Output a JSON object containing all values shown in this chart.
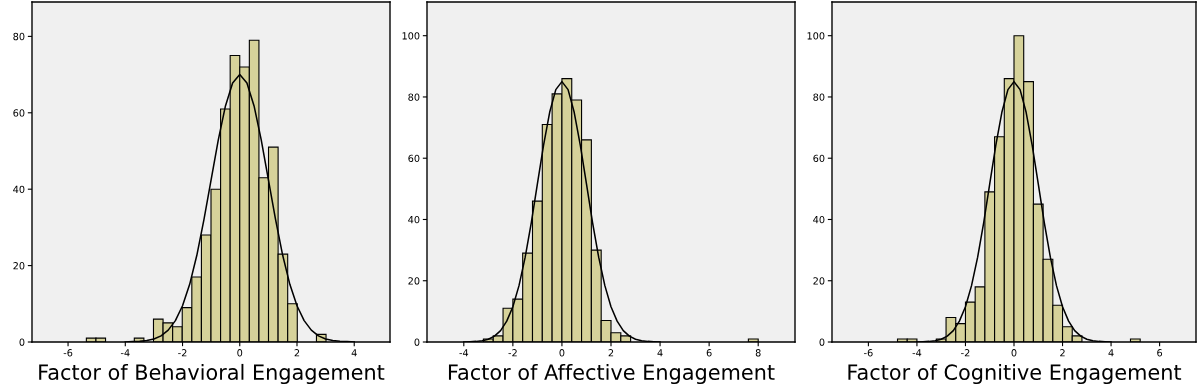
{
  "chart_data": [
    {
      "type": "histogram",
      "xlabel": "Factor of Behavioral Engagement",
      "xlim": [
        -7.26,
        5.25
      ],
      "ylim": [
        0,
        89
      ],
      "xticks": [
        -6,
        -4,
        -2,
        0,
        2,
        4
      ],
      "yticks": [
        0,
        20,
        40,
        60,
        80
      ],
      "grid": false,
      "series": [
        {
          "type": "histogram",
          "color": "#d6d29a",
          "bins": [
            -5.36,
            -5.025,
            -4.69,
            -4.355,
            -4.02,
            -3.685,
            -3.35,
            -3.015,
            -2.68,
            -2.345,
            -2.01,
            -1.675,
            -1.34,
            -1.005,
            -0.67,
            -0.335,
            0,
            0.335,
            0.67,
            1.005,
            1.34,
            1.675,
            2.01,
            2.345,
            2.68,
            3.015
          ],
          "values": [
            1,
            1,
            0,
            0,
            0,
            1,
            0,
            6,
            5,
            4,
            9,
            17,
            28,
            40,
            61,
            75,
            72,
            79,
            43,
            51,
            23,
            10,
            0,
            0,
            2
          ]
        },
        {
          "type": "line",
          "color": "#000000",
          "x": [
            -4,
            -3.75,
            -3.5,
            -3.25,
            -3,
            -2.75,
            -2.5,
            -2.25,
            -2,
            -1.75,
            -1.5,
            -1.25,
            -1,
            -0.75,
            -0.5,
            -0.25,
            0,
            0.25,
            0.5,
            0.75,
            1,
            1.25,
            1.5,
            1.75,
            2,
            2.25,
            2.5,
            2.75,
            3,
            3.25,
            3.5,
            3.75,
            4
          ],
          "values": [
            0,
            0.1,
            0.2,
            0.4,
            0.8,
            1.6,
            3.1,
            5.6,
            9.5,
            15.1,
            22.7,
            32.1,
            42.5,
            52.9,
            61.8,
            67.8,
            70,
            67.8,
            61.8,
            52.9,
            42.5,
            32.1,
            22.7,
            15.1,
            9.5,
            5.6,
            3.1,
            1.6,
            0.8,
            0.4,
            0.2,
            0.1,
            0
          ]
        }
      ]
    },
    {
      "type": "histogram",
      "xlabel": "Factor of Affective Engagement",
      "xlim": [
        -5.5,
        9.5
      ],
      "ylim": [
        0,
        111
      ],
      "xticks": [
        -4,
        -2,
        0,
        2,
        4,
        6,
        8
      ],
      "yticks": [
        0,
        20,
        40,
        60,
        80,
        100
      ],
      "grid": false,
      "series": [
        {
          "type": "histogram",
          "color": "#d6d29a",
          "bins": [
            -3.2,
            -2.8,
            -2.4,
            -2.0,
            -1.6,
            -1.2,
            -0.8,
            -0.4,
            0,
            0.4,
            0.8,
            1.2,
            1.6,
            2.0,
            2.4,
            2.8,
            3.2,
            3.6,
            4.0,
            4.4,
            4.8,
            5.2,
            5.6,
            6.0,
            6.4,
            6.8,
            7.2,
            7.6,
            8.0
          ],
          "values": [
            1,
            2,
            11,
            14,
            29,
            46,
            71,
            81,
            86,
            79,
            66,
            30,
            7,
            3,
            2,
            0,
            0,
            0,
            0,
            0,
            0,
            0,
            0,
            0,
            0,
            0,
            0,
            1
          ]
        },
        {
          "type": "line",
          "color": "#000000",
          "x": [
            -4,
            -3.75,
            -3.5,
            -3.25,
            -3,
            -2.75,
            -2.5,
            -2.25,
            -2,
            -1.75,
            -1.5,
            -1.25,
            -1,
            -0.75,
            -0.5,
            -0.25,
            0,
            0.25,
            0.5,
            0.75,
            1,
            1.25,
            1.5,
            1.75,
            2,
            2.25,
            2.5,
            2.75,
            3,
            3.25,
            3.5,
            3.75,
            4
          ],
          "values": [
            0,
            0.1,
            0.2,
            0.4,
            0.9,
            1.9,
            3.7,
            6.8,
            11.5,
            18.4,
            27.6,
            38.9,
            51.6,
            64.2,
            75,
            82.4,
            85,
            82.4,
            75,
            64.2,
            51.6,
            38.9,
            27.6,
            18.4,
            11.5,
            6.8,
            3.7,
            1.9,
            0.9,
            0.4,
            0.2,
            0.1,
            0
          ]
        }
      ]
    },
    {
      "type": "histogram",
      "xlabel": "Factor of Cognitive Engagement",
      "xlim": [
        -7.5,
        7.5
      ],
      "ylim": [
        0,
        111
      ],
      "xticks": [
        -6,
        -4,
        -2,
        0,
        2,
        4,
        6
      ],
      "yticks": [
        0,
        20,
        40,
        60,
        80,
        100
      ],
      "grid": false,
      "series": [
        {
          "type": "histogram",
          "color": "#d6d29a",
          "bins": [
            -4.8,
            -4.4,
            -4.0,
            -3.6,
            -3.2,
            -2.8,
            -2.4,
            -2.0,
            -1.6,
            -1.2,
            -0.8,
            -0.4,
            0,
            0.4,
            0.8,
            1.2,
            1.6,
            2.0,
            2.4,
            2.8,
            3.2,
            3.6,
            4.0,
            4.4,
            4.8,
            5.2
          ],
          "values": [
            1,
            1,
            0,
            0,
            1,
            8,
            6,
            13,
            18,
            49,
            67,
            86,
            100,
            85,
            45,
            27,
            12,
            5,
            2,
            0,
            0,
            0,
            0,
            0,
            1
          ]
        },
        {
          "type": "line",
          "color": "#000000",
          "x": [
            -4,
            -3.75,
            -3.5,
            -3.25,
            -3,
            -2.75,
            -2.5,
            -2.25,
            -2,
            -1.75,
            -1.5,
            -1.25,
            -1,
            -0.75,
            -0.5,
            -0.25,
            0,
            0.25,
            0.5,
            0.75,
            1,
            1.25,
            1.5,
            1.75,
            2,
            2.25,
            2.5,
            2.75,
            3,
            3.25,
            3.5,
            3.75,
            4
          ],
          "values": [
            0,
            0.1,
            0.2,
            0.4,
            0.9,
            1.9,
            3.7,
            6.8,
            11.5,
            18.4,
            27.6,
            38.9,
            51.6,
            64.2,
            75,
            82.4,
            85,
            82.4,
            75,
            64.2,
            51.6,
            38.9,
            27.6,
            18.4,
            11.5,
            6.8,
            3.7,
            1.9,
            0.9,
            0.4,
            0.2,
            0.1,
            0
          ]
        }
      ]
    }
  ]
}
